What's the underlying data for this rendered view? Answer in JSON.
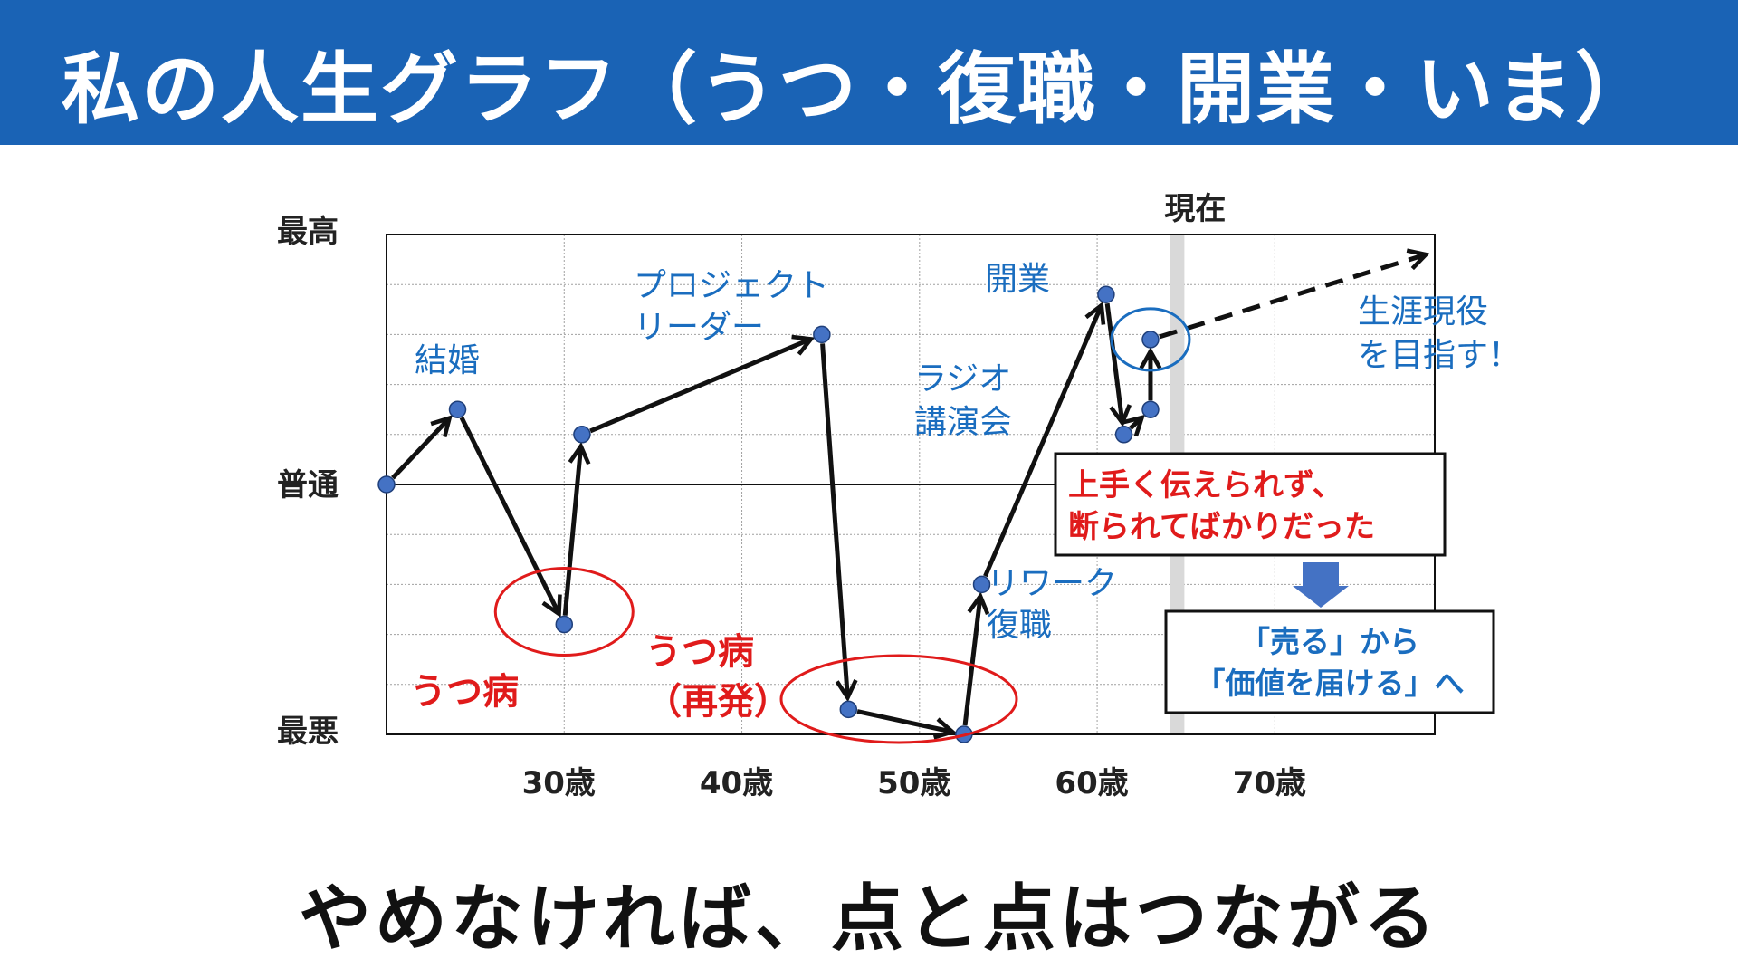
{
  "header": {
    "title": "私の人生グラフ（うつ・復職・開業・いま）"
  },
  "chart_data": {
    "type": "line",
    "y_labels": [
      "最高",
      "普通",
      "最悪"
    ],
    "ylim": [
      -5,
      5
    ],
    "xlim": [
      20,
      79
    ],
    "x_ticks": [
      {
        "value": 30,
        "label": "30歳"
      },
      {
        "value": 40,
        "label": "40歳"
      },
      {
        "value": 50,
        "label": "50歳"
      },
      {
        "value": 60,
        "label": "60歳"
      },
      {
        "value": 70,
        "label": "70歳"
      }
    ],
    "current_label": "現在",
    "current_x": 64.5,
    "grid": true,
    "points": [
      {
        "x": 20,
        "y": 0
      },
      {
        "x": 24,
        "y": 1.5
      },
      {
        "x": 30,
        "y": -2.8
      },
      {
        "x": 31,
        "y": 1
      },
      {
        "x": 44.5,
        "y": 3
      },
      {
        "x": 46,
        "y": -4.5
      },
      {
        "x": 52.5,
        "y": -5
      },
      {
        "x": 53.5,
        "y": -2
      },
      {
        "x": 60.5,
        "y": 3.8
      },
      {
        "x": 61.5,
        "y": 1
      },
      {
        "x": 63,
        "y": 1.5
      },
      {
        "x": 63,
        "y": 2.9
      }
    ],
    "projection": {
      "from": {
        "x": 63,
        "y": 2.9
      },
      "to": {
        "x": 78.5,
        "y": 4.6
      }
    },
    "annotations_blue": [
      {
        "text": "結婚"
      },
      {
        "text": "プロジェクト"
      },
      {
        "text": "リーダー"
      },
      {
        "text": "ラジオ"
      },
      {
        "text": "講演会"
      },
      {
        "text": "開業"
      },
      {
        "text": "リワーク"
      },
      {
        "text": "復職"
      },
      {
        "text": "生涯現役"
      },
      {
        "text": "を目指す！"
      }
    ],
    "annotations_red": [
      {
        "text": "うつ病"
      },
      {
        "text": "うつ病"
      },
      {
        "text": "（再発）"
      }
    ],
    "callout_red": [
      "上手く伝えられず、",
      "断られてばかりだった"
    ],
    "callout_blue": [
      "「売る」から",
      "「価値を届ける」へ"
    ],
    "colors": {
      "line": "#111111",
      "point": "#4472c4",
      "annotation_blue": "#1a6dbf",
      "annotation_red": "#e01b1b",
      "arrow_fill": "#4472c4",
      "header_bg": "#1a63b5"
    }
  },
  "footer": {
    "caption": "やめなければ、点と点はつながる"
  }
}
